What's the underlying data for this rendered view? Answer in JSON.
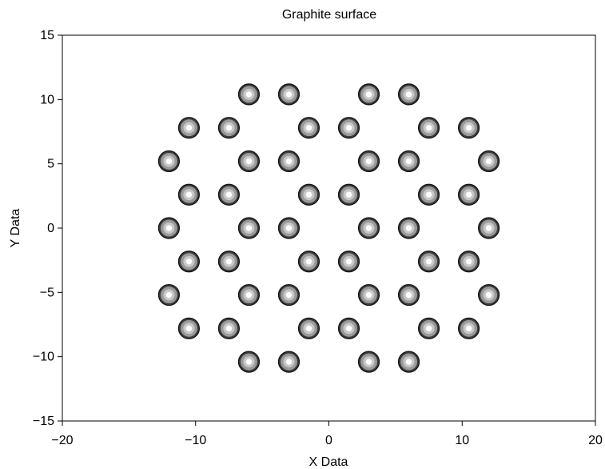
{
  "chart_data": {
    "type": "scatter",
    "title": "Graphite surface",
    "xlabel": "X Data",
    "ylabel": "Y Data",
    "xlim": [
      -20,
      20
    ],
    "ylim": [
      -15,
      15
    ],
    "xticks": [
      -20,
      -10,
      0,
      10,
      20
    ],
    "yticks": [
      -15,
      -10,
      -5,
      0,
      5,
      10,
      15
    ],
    "xtick_labels": [
      "−20",
      "−10",
      "0",
      "10",
      "20"
    ],
    "ytick_labels": [
      "−15",
      "−10",
      "−5",
      "0",
      "5",
      "10",
      "15"
    ],
    "grid": false,
    "marker": "concentric-circle",
    "colors": {
      "marker_outer": "#3c3c3c",
      "marker_ring": "#9a9a9a",
      "marker_mid": "#c8c8c8",
      "marker_center": "#ffffff",
      "axis": "#000000"
    },
    "series": [
      {
        "points": [
          [
            -6,
            10.4
          ],
          [
            -3,
            10.4
          ],
          [
            3,
            10.4
          ],
          [
            6,
            10.4
          ],
          [
            -10.5,
            7.8
          ],
          [
            -7.5,
            7.8
          ],
          [
            -1.5,
            7.8
          ],
          [
            1.5,
            7.8
          ],
          [
            7.5,
            7.8
          ],
          [
            10.5,
            7.8
          ],
          [
            -12,
            5.2
          ],
          [
            -6,
            5.2
          ],
          [
            -3,
            5.2
          ],
          [
            3,
            5.2
          ],
          [
            6,
            5.2
          ],
          [
            12,
            5.2
          ],
          [
            -10.5,
            2.6
          ],
          [
            -7.5,
            2.6
          ],
          [
            -1.5,
            2.6
          ],
          [
            1.5,
            2.6
          ],
          [
            7.5,
            2.6
          ],
          [
            10.5,
            2.6
          ],
          [
            -12,
            0
          ],
          [
            -6,
            0
          ],
          [
            -3,
            0
          ],
          [
            3,
            0
          ],
          [
            6,
            0
          ],
          [
            12,
            0
          ],
          [
            -10.5,
            -2.6
          ],
          [
            -7.5,
            -2.6
          ],
          [
            -1.5,
            -2.6
          ],
          [
            1.5,
            -2.6
          ],
          [
            7.5,
            -2.6
          ],
          [
            10.5,
            -2.6
          ],
          [
            -12,
            -5.2
          ],
          [
            -6,
            -5.2
          ],
          [
            -3,
            -5.2
          ],
          [
            3,
            -5.2
          ],
          [
            6,
            -5.2
          ],
          [
            12,
            -5.2
          ],
          [
            -10.5,
            -7.8
          ],
          [
            -7.5,
            -7.8
          ],
          [
            -1.5,
            -7.8
          ],
          [
            1.5,
            -7.8
          ],
          [
            7.5,
            -7.8
          ],
          [
            10.5,
            -7.8
          ],
          [
            -6,
            -10.4
          ],
          [
            -3,
            -10.4
          ],
          [
            3,
            -10.4
          ],
          [
            6,
            -10.4
          ]
        ]
      }
    ]
  }
}
